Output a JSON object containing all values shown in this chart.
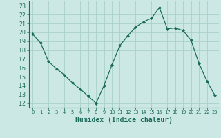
{
  "x": [
    0,
    1,
    2,
    3,
    4,
    5,
    6,
    7,
    8,
    9,
    10,
    11,
    12,
    13,
    14,
    15,
    16,
    17,
    18,
    19,
    20,
    21,
    22,
    23
  ],
  "y": [
    19.8,
    18.8,
    16.7,
    15.9,
    15.2,
    14.3,
    13.6,
    12.8,
    12.0,
    14.0,
    16.3,
    18.5,
    19.6,
    20.6,
    21.2,
    21.6,
    22.8,
    20.4,
    20.5,
    20.2,
    19.1,
    16.5,
    14.5,
    12.9
  ],
  "line_color": "#1a6b5a",
  "marker": "D",
  "marker_size": 2,
  "bg_color": "#cce8e4",
  "grid_color": "#aacfc9",
  "xlabel": "Humidex (Indice chaleur)",
  "xlim": [
    -0.5,
    23.5
  ],
  "ylim": [
    11.5,
    23.5
  ],
  "yticks": [
    12,
    13,
    14,
    15,
    16,
    17,
    18,
    19,
    20,
    21,
    22,
    23
  ],
  "xticks": [
    0,
    1,
    2,
    3,
    4,
    5,
    6,
    7,
    8,
    9,
    10,
    11,
    12,
    13,
    14,
    15,
    16,
    17,
    18,
    19,
    20,
    21,
    22,
    23
  ]
}
